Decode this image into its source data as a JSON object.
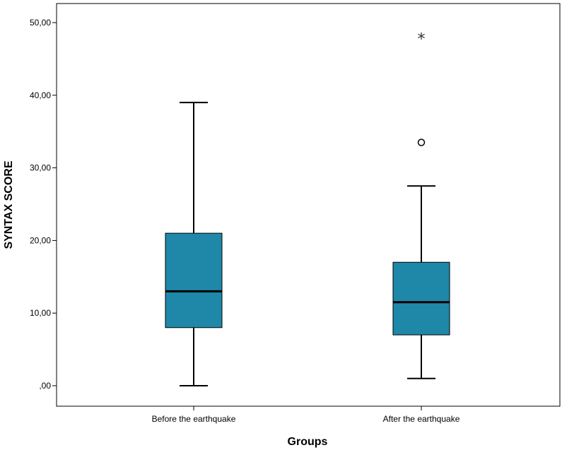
{
  "chart_data": {
    "type": "box",
    "xlabel": "Groups",
    "ylabel": "SYNTAX SCORE",
    "ylim": [
      0,
      50
    ],
    "yticks": [
      0,
      10,
      20,
      30,
      40,
      50
    ],
    "ytick_labels": [
      ",00",
      "10,00",
      "20,00",
      "30,00",
      "40,00",
      "50,00"
    ],
    "categories": [
      "Before the earthquake",
      "After the earthquake"
    ],
    "box_color": "#1f88a8",
    "grid": false,
    "series": [
      {
        "category": "Before the earthquake",
        "whisker_low": 0,
        "q1": 8,
        "median": 13,
        "q3": 21,
        "whisker_high": 39,
        "outliers": [],
        "extremes": []
      },
      {
        "category": "After the earthquake",
        "whisker_low": 1,
        "q1": 7,
        "median": 11.5,
        "q3": 17,
        "whisker_high": 27.5,
        "outliers": [
          33.5
        ],
        "extremes": [
          48
        ]
      }
    ]
  }
}
